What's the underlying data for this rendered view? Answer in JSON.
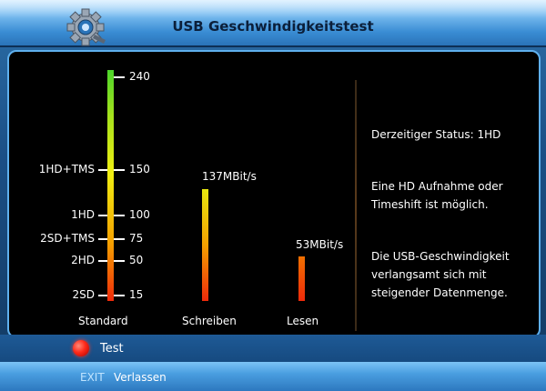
{
  "header": {
    "title": "USB Geschwindigkeitstest"
  },
  "scale": {
    "ticks": [
      {
        "label": "",
        "value": "240"
      },
      {
        "label": "1HD+TMS",
        "value": "150"
      },
      {
        "label": "1HD",
        "value": "100"
      },
      {
        "label": "2SD+TMS",
        "value": "75"
      },
      {
        "label": "2HD",
        "value": "50"
      },
      {
        "label": "2SD",
        "value": "15"
      }
    ],
    "caption": "Standard"
  },
  "write": {
    "value_label": "137MBit/s",
    "caption": "Schreiben",
    "value": 137
  },
  "read": {
    "value_label": "53MBit/s",
    "caption": "Lesen",
    "value": 53
  },
  "status": {
    "current": "Derzeitiger Status: 1HD",
    "line1": "Eine HD Aufnahme oder",
    "line2": "Timeshift ist möglich.",
    "line3": "Die USB-Geschwindigkeit",
    "line4": "verlangsamt sich mit",
    "line5": "steigender Datenmenge."
  },
  "actions": {
    "test_label": "Test",
    "red_button_icon": "red-button-icon"
  },
  "footer": {
    "exit_key": "EXIT",
    "exit_label": "Verlassen"
  },
  "colors": {
    "accent": "#2a73b8",
    "panel_border": "#5fb0ee"
  }
}
